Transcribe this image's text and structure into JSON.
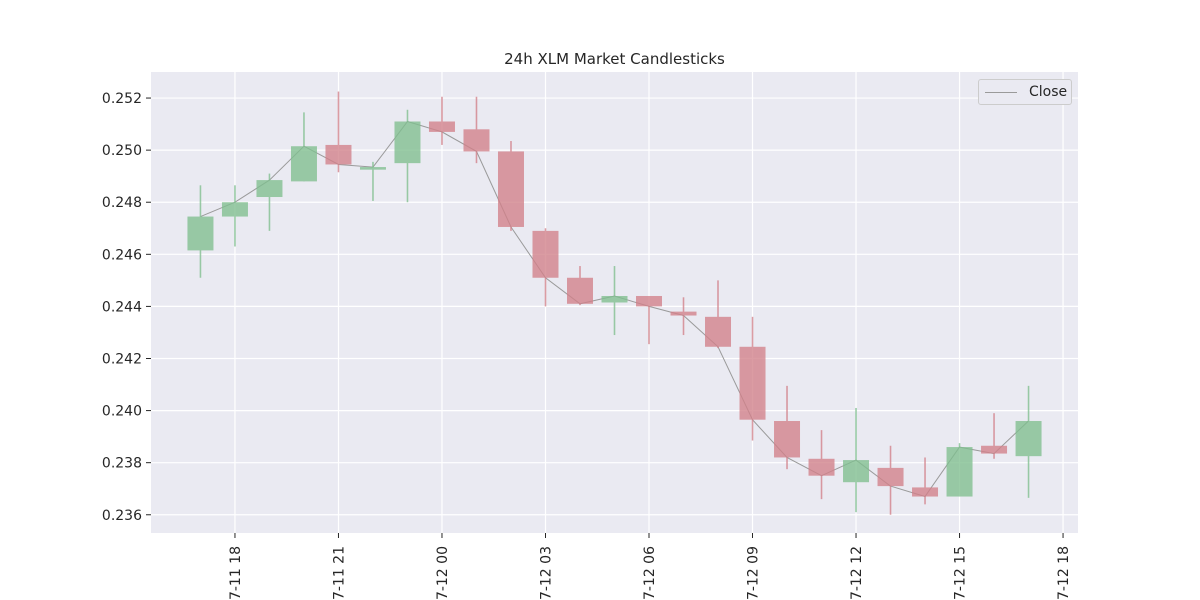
{
  "chart_data": {
    "type": "candlestick",
    "title": "24h XLM Market Candlesticks",
    "xlabel": "",
    "ylabel": "",
    "ylim": [
      0.2353,
      0.253
    ],
    "xlim": [
      "07-11 15:34",
      "07-12 18:26"
    ],
    "grid": true,
    "legend": {
      "position": "top-right",
      "entries": [
        "Close"
      ]
    },
    "y_ticks": [
      "0.236",
      "0.238",
      "0.240",
      "0.242",
      "0.244",
      "0.246",
      "0.248",
      "0.250",
      "0.252"
    ],
    "x_ticks": [
      {
        "t": "07-11 18:00",
        "label": "07-11 18"
      },
      {
        "t": "07-11 21:00",
        "label": "07-11 21"
      },
      {
        "t": "07-12 00:00",
        "label": "07-12 00"
      },
      {
        "t": "07-12 03:00",
        "label": "07-12 03"
      },
      {
        "t": "07-12 06:00",
        "label": "07-12 06"
      },
      {
        "t": "07-12 09:00",
        "label": "07-12 09"
      },
      {
        "t": "07-12 12:00",
        "label": "07-12 12"
      },
      {
        "t": "07-12 15:00",
        "label": "07-12 15"
      },
      {
        "t": "07-12 18:00",
        "label": "07-12 18"
      }
    ],
    "candles": [
      {
        "t": "07-11 17:00",
        "open": 0.24615,
        "high": 0.24865,
        "low": 0.2451,
        "close": 0.24745
      },
      {
        "t": "07-11 18:00",
        "open": 0.24745,
        "high": 0.24865,
        "low": 0.2463,
        "close": 0.248
      },
      {
        "t": "07-11 19:00",
        "open": 0.2482,
        "high": 0.2491,
        "low": 0.2469,
        "close": 0.24885
      },
      {
        "t": "07-11 20:00",
        "open": 0.2488,
        "high": 0.25145,
        "low": 0.2488,
        "close": 0.25015
      },
      {
        "t": "07-11 21:00",
        "open": 0.2502,
        "high": 0.25225,
        "low": 0.24915,
        "close": 0.24945
      },
      {
        "t": "07-11 22:00",
        "open": 0.24925,
        "high": 0.24955,
        "low": 0.24805,
        "close": 0.24935
      },
      {
        "t": "07-11 23:00",
        "open": 0.2495,
        "high": 0.25155,
        "low": 0.248,
        "close": 0.2511
      },
      {
        "t": "07-12 00:00",
        "open": 0.2511,
        "high": 0.25205,
        "low": 0.2502,
        "close": 0.2507
      },
      {
        "t": "07-12 01:00",
        "open": 0.2508,
        "high": 0.25205,
        "low": 0.2495,
        "close": 0.24995
      },
      {
        "t": "07-12 02:00",
        "open": 0.24995,
        "high": 0.25035,
        "low": 0.2469,
        "close": 0.24705
      },
      {
        "t": "07-12 03:00",
        "open": 0.2469,
        "high": 0.247,
        "low": 0.244,
        "close": 0.2451
      },
      {
        "t": "07-12 04:00",
        "open": 0.2451,
        "high": 0.24555,
        "low": 0.24405,
        "close": 0.2441
      },
      {
        "t": "07-12 05:00",
        "open": 0.24415,
        "high": 0.24555,
        "low": 0.2429,
        "close": 0.2444
      },
      {
        "t": "07-12 06:00",
        "open": 0.2444,
        "high": 0.2444,
        "low": 0.24255,
        "close": 0.244
      },
      {
        "t": "07-12 07:00",
        "open": 0.2438,
        "high": 0.24435,
        "low": 0.2429,
        "close": 0.24365
      },
      {
        "t": "07-12 08:00",
        "open": 0.2436,
        "high": 0.245,
        "low": 0.2424,
        "close": 0.24245
      },
      {
        "t": "07-12 09:00",
        "open": 0.24245,
        "high": 0.2436,
        "low": 0.23885,
        "close": 0.23965
      },
      {
        "t": "07-12 10:00",
        "open": 0.2396,
        "high": 0.24095,
        "low": 0.23775,
        "close": 0.2382
      },
      {
        "t": "07-12 11:00",
        "open": 0.23815,
        "high": 0.23925,
        "low": 0.2366,
        "close": 0.2375
      },
      {
        "t": "07-12 12:00",
        "open": 0.23725,
        "high": 0.2401,
        "low": 0.2361,
        "close": 0.2381
      },
      {
        "t": "07-12 13:00",
        "open": 0.2378,
        "high": 0.23865,
        "low": 0.236,
        "close": 0.2371
      },
      {
        "t": "07-12 14:00",
        "open": 0.23705,
        "high": 0.2382,
        "low": 0.2364,
        "close": 0.2367
      },
      {
        "t": "07-12 15:00",
        "open": 0.2367,
        "high": 0.23875,
        "low": 0.2367,
        "close": 0.2386
      },
      {
        "t": "07-12 16:00",
        "open": 0.23865,
        "high": 0.2399,
        "low": 0.23815,
        "close": 0.23835
      },
      {
        "t": "07-12 17:00",
        "open": 0.23825,
        "high": 0.24095,
        "low": 0.23665,
        "close": 0.2396
      }
    ],
    "colors": {
      "up": "#80bf8f",
      "down": "#d2818a",
      "close_line": "#9a9a9a",
      "plot_bg": "#eaeaf2",
      "grid": "#ffffff",
      "text": "#262626"
    }
  }
}
